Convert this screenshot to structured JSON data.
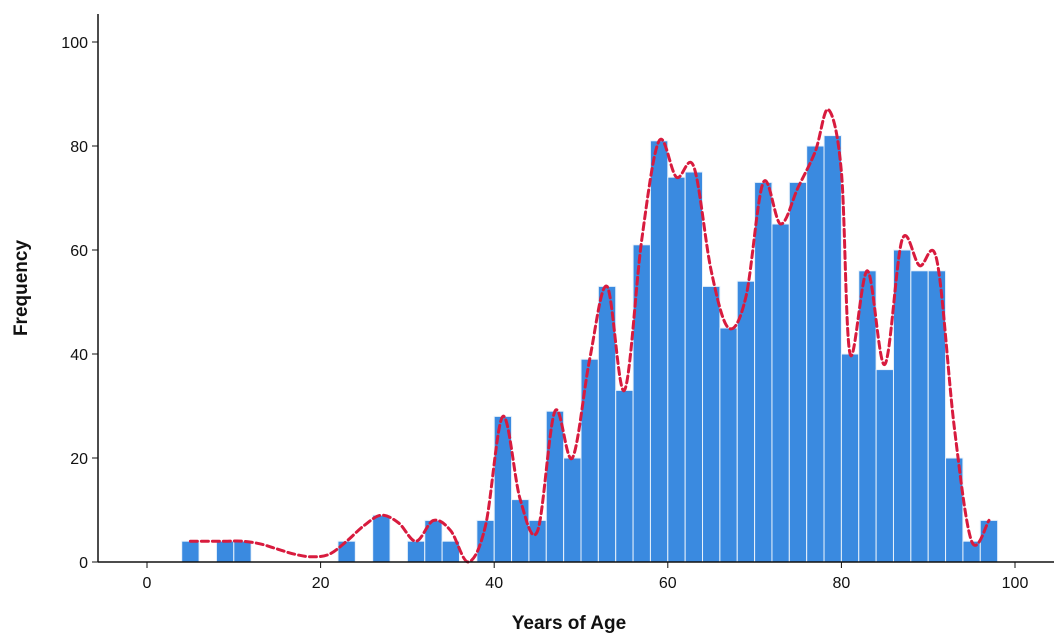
{
  "chart_data": {
    "type": "bar",
    "title": "",
    "xlabel": "Years of Age",
    "ylabel": "Frequency",
    "xlim": [
      -2,
      101
    ],
    "ylim": [
      0,
      105
    ],
    "grid": false,
    "x_ticks": [
      0,
      20,
      40,
      60,
      80,
      100
    ],
    "y_ticks": [
      0,
      20,
      40,
      60,
      80,
      100
    ],
    "bin_width": 2,
    "bars": [
      {
        "x": 5,
        "y": 4
      },
      {
        "x": 9,
        "y": 4
      },
      {
        "x": 11,
        "y": 4
      },
      {
        "x": 23,
        "y": 4
      },
      {
        "x": 27,
        "y": 9
      },
      {
        "x": 31,
        "y": 4
      },
      {
        "x": 33,
        "y": 8
      },
      {
        "x": 35,
        "y": 4
      },
      {
        "x": 39,
        "y": 8
      },
      {
        "x": 41,
        "y": 28
      },
      {
        "x": 43,
        "y": 12
      },
      {
        "x": 45,
        "y": 8
      },
      {
        "x": 47,
        "y": 29
      },
      {
        "x": 49,
        "y": 20
      },
      {
        "x": 51,
        "y": 39
      },
      {
        "x": 53,
        "y": 53
      },
      {
        "x": 55,
        "y": 33
      },
      {
        "x": 57,
        "y": 61
      },
      {
        "x": 59,
        "y": 81
      },
      {
        "x": 61,
        "y": 74
      },
      {
        "x": 63,
        "y": 75
      },
      {
        "x": 65,
        "y": 53
      },
      {
        "x": 67,
        "y": 45
      },
      {
        "x": 69,
        "y": 54
      },
      {
        "x": 71,
        "y": 73
      },
      {
        "x": 73,
        "y": 65
      },
      {
        "x": 75,
        "y": 73
      },
      {
        "x": 77,
        "y": 80
      },
      {
        "x": 79,
        "y": 82
      },
      {
        "x": 81,
        "y": 40
      },
      {
        "x": 83,
        "y": 56
      },
      {
        "x": 85,
        "y": 37
      },
      {
        "x": 87,
        "y": 60
      },
      {
        "x": 89,
        "y": 56
      },
      {
        "x": 91,
        "y": 56
      },
      {
        "x": 93,
        "y": 20
      },
      {
        "x": 95,
        "y": 4
      },
      {
        "x": 97,
        "y": 8
      }
    ],
    "curve": {
      "style": "dashed",
      "points": [
        [
          5,
          4
        ],
        [
          7,
          4
        ],
        [
          9,
          4
        ],
        [
          11,
          4
        ],
        [
          13,
          3.5
        ],
        [
          15,
          2.5
        ],
        [
          17,
          1.5
        ],
        [
          19,
          1
        ],
        [
          21,
          1.5
        ],
        [
          23,
          4
        ],
        [
          25,
          7
        ],
        [
          27,
          9
        ],
        [
          29,
          7.5
        ],
        [
          31,
          4
        ],
        [
          33,
          8
        ],
        [
          35,
          6
        ],
        [
          37,
          0
        ],
        [
          39,
          7
        ],
        [
          41,
          28
        ],
        [
          43,
          12
        ],
        [
          45,
          6
        ],
        [
          47,
          29
        ],
        [
          49,
          20
        ],
        [
          51,
          39
        ],
        [
          53,
          53
        ],
        [
          55,
          33
        ],
        [
          57,
          62
        ],
        [
          59,
          81
        ],
        [
          61,
          74
        ],
        [
          63,
          76
        ],
        [
          65,
          56
        ],
        [
          67,
          45
        ],
        [
          69,
          51
        ],
        [
          71,
          73
        ],
        [
          73,
          65
        ],
        [
          75,
          72
        ],
        [
          77,
          79
        ],
        [
          78.5,
          87
        ],
        [
          80,
          75
        ],
        [
          81,
          40
        ],
        [
          83,
          56
        ],
        [
          85,
          38
        ],
        [
          87,
          62
        ],
        [
          89,
          57
        ],
        [
          91,
          58
        ],
        [
          93,
          26
        ],
        [
          95,
          4
        ],
        [
          97,
          8
        ]
      ]
    },
    "colors": {
      "bar_fill": "#3a8ae0",
      "bar_edge": "#e9f2fb",
      "curve": "#d81b3e",
      "axis": "#111111"
    }
  }
}
